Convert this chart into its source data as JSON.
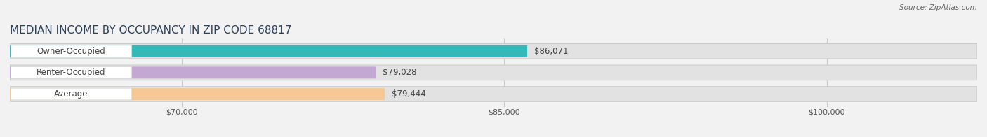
{
  "title": "MEDIAN INCOME BY OCCUPANCY IN ZIP CODE 68817",
  "source": "Source: ZipAtlas.com",
  "categories": [
    "Owner-Occupied",
    "Renter-Occupied",
    "Average"
  ],
  "values": [
    86071,
    79028,
    79444
  ],
  "labels": [
    "$86,071",
    "$79,028",
    "$79,444"
  ],
  "bar_colors": [
    "#35b8b8",
    "#c4a8d4",
    "#f5c896"
  ],
  "background_color": "#f2f2f2",
  "bar_bg_color": "#e2e2e2",
  "label_bg_color": "#ffffff",
  "xlim_min": 62000,
  "xlim_max": 107000,
  "data_min": 62000,
  "xticks": [
    70000,
    85000,
    100000
  ],
  "xtick_labels": [
    "$70,000",
    "$85,000",
    "$100,000"
  ],
  "title_fontsize": 11,
  "label_fontsize": 8.5,
  "tick_fontsize": 8,
  "source_fontsize": 7.5
}
